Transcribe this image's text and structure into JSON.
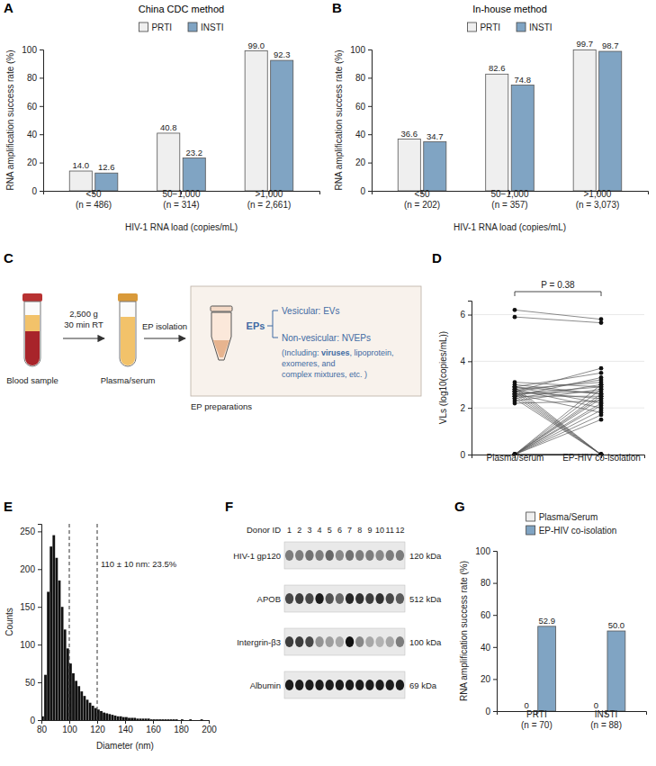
{
  "chart_data": [
    {
      "panel": "A",
      "type": "bar",
      "title": "China CDC method",
      "categories": [
        "<50\n(n = 486)",
        "50−1,000\n(n = 314)",
        ">1,000\n(n = 2,661)"
      ],
      "series": [
        {
          "name": "PRTI",
          "color": "#efefef",
          "values": [
            14.0,
            40.8,
            99.0
          ],
          "value_labels": [
            "14.0",
            "40.8",
            "99.0"
          ]
        },
        {
          "name": "INSTI",
          "color": "#80a4c3",
          "values": [
            12.6,
            23.2,
            92.3
          ],
          "value_labels": [
            "12.6",
            "23.2",
            "92.3"
          ]
        }
      ],
      "x_label": "HIV-1 RNA load (copies/mL)",
      "y_label": "RNA amplification success rate (%)",
      "ylim": [
        0,
        100
      ],
      "yticks": [
        0,
        20,
        40,
        60,
        80,
        100
      ],
      "data_labels": true,
      "legend": "top"
    },
    {
      "panel": "B",
      "type": "bar",
      "title": "In-house method",
      "categories": [
        "<50\n(n = 202)",
        "50−1,000\n(n = 357)",
        ">1,000\n(n = 3,073)"
      ],
      "series": [
        {
          "name": "PRTI",
          "color": "#efefef",
          "values": [
            36.6,
            82.6,
            99.7
          ],
          "value_labels": [
            "36.6",
            "82.6",
            "99.7"
          ]
        },
        {
          "name": "INSTI",
          "color": "#80a4c3",
          "values": [
            34.7,
            74.8,
            98.7
          ],
          "value_labels": [
            "34.7",
            "74.8",
            "98.7"
          ]
        }
      ],
      "x_label": "HIV-1 RNA load (copies/mL)",
      "y_label": "RNA amplification success rate (%)",
      "ylim": [
        0,
        100
      ],
      "yticks": [
        0,
        20,
        40,
        60,
        80,
        100
      ],
      "data_labels": true,
      "legend": "top"
    },
    {
      "panel": "D",
      "type": "paired_scatter",
      "categories": [
        "Plasma/serum",
        "EP-HIV co-isolation"
      ],
      "values": [
        [
          5.9,
          5.65
        ],
        [
          6.2,
          5.8
        ],
        [
          0,
          2.5
        ],
        [
          0,
          2.2
        ],
        [
          0,
          1.9
        ],
        [
          0,
          2.8
        ],
        [
          0,
          1.5
        ],
        [
          0,
          2.1
        ],
        [
          0,
          2.4
        ],
        [
          0,
          1.7
        ],
        [
          0,
          2.6
        ],
        [
          0,
          3.0
        ],
        [
          0,
          0
        ],
        [
          0,
          0
        ],
        [
          0,
          0
        ],
        [
          0,
          0
        ],
        [
          2.4,
          0
        ],
        [
          2.7,
          0
        ],
        [
          2.9,
          0
        ],
        [
          2.6,
          0
        ],
        [
          2.5,
          0
        ],
        [
          2.8,
          0
        ],
        [
          2.7,
          3.7
        ],
        [
          2.9,
          3.5
        ],
        [
          2.5,
          3.3
        ],
        [
          2.8,
          3.1
        ],
        [
          2.6,
          2.9
        ],
        [
          3.0,
          2.6
        ],
        [
          2.3,
          2.8
        ],
        [
          2.7,
          2.4
        ],
        [
          2.9,
          2.2
        ],
        [
          2.4,
          3.0
        ],
        [
          2.6,
          2.7
        ],
        [
          2.8,
          2.0
        ],
        [
          2.5,
          2.5
        ],
        [
          3.1,
          2.9
        ],
        [
          2.2,
          2.3
        ],
        [
          2.7,
          3.2
        ],
        [
          2.9,
          2.6
        ],
        [
          2.6,
          1.8
        ]
      ],
      "y_label": "VLs (log10(copies/mL))",
      "ylim": [
        0,
        6.6
      ],
      "yticks": [
        0,
        2,
        4,
        6
      ],
      "grid": true,
      "annotation": "P = 0.38",
      "color": "#111111"
    },
    {
      "panel": "E",
      "type": "histogram",
      "bins": [
        80,
        82,
        84,
        86,
        88,
        90,
        92,
        94,
        96,
        98,
        100,
        102,
        104,
        106,
        108,
        110,
        112,
        114,
        116,
        118,
        120,
        122,
        124,
        126,
        128,
        130,
        132,
        134,
        136,
        138,
        140,
        142,
        144,
        146,
        148,
        150,
        152,
        154,
        156,
        158,
        160,
        162,
        164,
        166,
        168,
        170,
        172,
        174,
        176,
        178,
        180,
        182,
        184,
        186,
        188,
        190,
        192,
        194,
        196,
        198,
        200
      ],
      "counts": [
        5,
        60,
        170,
        230,
        245,
        215,
        185,
        150,
        120,
        95,
        75,
        62,
        52,
        45,
        38,
        32,
        27,
        23,
        19,
        16,
        14,
        12,
        10,
        9,
        8,
        7,
        6,
        5,
        5,
        4,
        4,
        3,
        3,
        3,
        2,
        2,
        2,
        2,
        2,
        1,
        1,
        1,
        1,
        1,
        1,
        1,
        1,
        1,
        1,
        0,
        1,
        0,
        0,
        1,
        0,
        0,
        0,
        1,
        0,
        0
      ],
      "x_label": "Diameter (nm)",
      "y_label": "Counts",
      "xlim": [
        80,
        200
      ],
      "xticks": [
        80,
        100,
        120,
        140,
        160,
        180,
        200
      ],
      "ylim": [
        0,
        260
      ],
      "yticks": [
        0,
        50,
        100,
        150,
        200,
        250
      ],
      "annotation": "110 ± 10 nm: 23.5%",
      "annotation_lines": [
        100,
        120
      ],
      "color": "#111111"
    },
    {
      "panel": "G",
      "type": "bar",
      "categories": [
        "PRTI\n(n = 70)",
        "INSTI\n(n = 88)"
      ],
      "series": [
        {
          "name": "Plasma/Serum",
          "color": "#efefef",
          "values": [
            0,
            0
          ]
        },
        {
          "name": "EP-HIV co-isolation",
          "color": "#80a4c3",
          "values": [
            52.9,
            50.0
          ],
          "value_labels": [
            "52.9",
            "50.0"
          ]
        }
      ],
      "y_label": "RNA amplification success rate (%)",
      "ylim": [
        0,
        100
      ],
      "yticks": [
        0,
        20,
        40,
        60,
        80,
        100
      ],
      "data_labels": true,
      "legend": "top"
    }
  ],
  "diagram": {
    "panel": "C",
    "blood_label": "Blood sample",
    "centrifuge": [
      "2,500 g",
      "30 min RT"
    ],
    "plasma_label": "Plasma/serum",
    "isolation": "EP isolation",
    "preparations": "EP preparations",
    "eps": "EPs",
    "vesicular": "Vesicular: EVs",
    "nonvesicular": "Non-vesicular: NVEPs",
    "including": [
      [
        "(Including: ",
        "viruses",
        ", lipoprotein,"
      ],
      [
        "exomeres, and"
      ],
      [
        "complex mixtures, etc. )"
      ]
    ]
  },
  "blot": {
    "panel": "F",
    "header": "Donor ID",
    "donors": [
      1,
      2,
      3,
      4,
      5,
      6,
      7,
      8,
      9,
      10,
      11,
      12
    ],
    "rows": [
      {
        "label": "HIV-1 gp120",
        "size": "120 kDa",
        "intensity": [
          0.5,
          0.5,
          0.55,
          0.5,
          0.6,
          0.45,
          0.55,
          0.5,
          0.5,
          0.45,
          0.5,
          0.5
        ]
      },
      {
        "label": "APOB",
        "size": "512 kDa",
        "intensity": [
          0.75,
          0.8,
          0.75,
          0.95,
          0.7,
          0.6,
          0.9,
          0.85,
          0.8,
          0.85,
          0.75,
          0.65
        ]
      },
      {
        "label": "Intergrin-β3",
        "size": "100 kDa",
        "intensity": [
          0.8,
          0.8,
          0.75,
          0.4,
          0.35,
          0.3,
          1.0,
          0.45,
          0.3,
          0.25,
          0.3,
          0.5
        ]
      },
      {
        "label": "Albumin",
        "size": "69 kDa",
        "intensity": [
          0.95,
          0.95,
          0.95,
          0.95,
          0.95,
          0.95,
          0.95,
          0.95,
          0.95,
          0.95,
          0.95,
          0.95
        ]
      }
    ]
  }
}
